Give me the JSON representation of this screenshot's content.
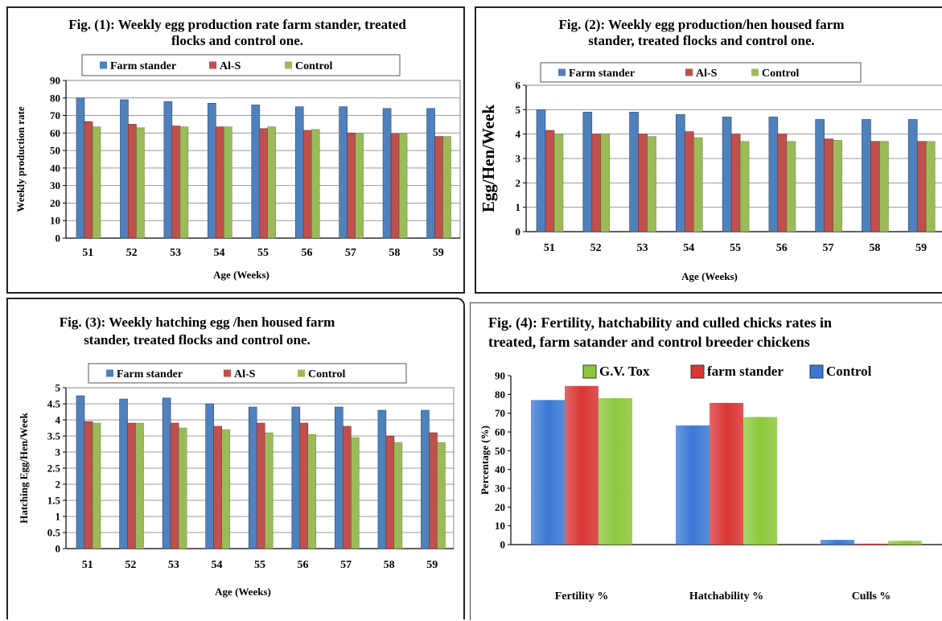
{
  "colors": {
    "blue": "#4f81bd",
    "red": "#c0504d",
    "green": "#9bbb59",
    "blue_bright": "#3a78d4",
    "red_bright": "#d93535",
    "green_bright": "#8cc83a",
    "grid": "#999999",
    "axis": "#000000"
  },
  "chart_data": [
    {
      "id": "fig1",
      "type": "bar",
      "title": [
        "Fig. (1): Weekly  egg production rate farm stander, treated",
        "flocks and control one."
      ],
      "xlabel": "Age (Weeks)",
      "ylabel": "Weekly production rate",
      "categories": [
        "51",
        "52",
        "53",
        "54",
        "55",
        "56",
        "57",
        "58",
        "59"
      ],
      "ylim": [
        0,
        90
      ],
      "yticks": [
        "0",
        "10",
        "20",
        "30",
        "40",
        "50",
        "60",
        "70",
        "80",
        "90"
      ],
      "grid": true,
      "legend": "top",
      "series": [
        {
          "name": "Farm stander",
          "values": [
            80,
            79,
            78,
            77,
            76,
            75,
            75,
            74,
            74
          ]
        },
        {
          "name": "Al-S",
          "values": [
            66.5,
            65,
            64,
            63.5,
            62.5,
            61.5,
            60,
            59.5,
            58
          ]
        },
        {
          "name": "Control",
          "values": [
            63.5,
            63,
            63.5,
            63.5,
            63.5,
            62,
            59.5,
            59.5,
            58
          ]
        }
      ]
    },
    {
      "id": "fig2",
      "type": "bar",
      "title": [
        "Fig. (2): Weekly  egg production/hen housed farm",
        "stander, treated flocks and control one."
      ],
      "xlabel": "Age (Weeks)",
      "ylabel": "Egg/Hen/Week",
      "categories": [
        "51",
        "52",
        "53",
        "54",
        "55",
        "56",
        "57",
        "58",
        "59"
      ],
      "ylim": [
        0,
        6
      ],
      "yticks": [
        "0",
        "1",
        "2",
        "3",
        "4",
        "5",
        "6"
      ],
      "grid": true,
      "legend": "top",
      "series": [
        {
          "name": "Farm stander",
          "values": [
            5,
            4.9,
            4.9,
            4.8,
            4.7,
            4.7,
            4.6,
            4.6,
            4.6
          ]
        },
        {
          "name": "Al-S",
          "values": [
            4.15,
            4.0,
            4.0,
            4.1,
            4.0,
            4.0,
            3.8,
            3.7,
            3.7
          ]
        },
        {
          "name": "Control",
          "values": [
            4.0,
            4.0,
            3.9,
            3.85,
            3.7,
            3.7,
            3.75,
            3.7,
            3.7
          ]
        }
      ]
    },
    {
      "id": "fig3",
      "type": "bar",
      "title": [
        "Fig. (3): Weekly hatching egg /hen housed farm",
        "stander, treated flocks and control one."
      ],
      "xlabel": "Age (Weeks)",
      "ylabel": "Hatching Egg/Hen/Week",
      "categories": [
        "51",
        "52",
        "53",
        "54",
        "55",
        "56",
        "57",
        "58",
        "59"
      ],
      "ylim": [
        0,
        5
      ],
      "yticks": [
        "0",
        "0.5",
        "1",
        "1.5",
        "2",
        "2.5",
        "3",
        "3.5",
        "4",
        "4.5",
        "5"
      ],
      "grid": true,
      "legend": "top",
      "series": [
        {
          "name": "Farm stander",
          "values": [
            4.75,
            4.65,
            4.68,
            4.5,
            4.4,
            4.4,
            4.4,
            4.3,
            4.3
          ]
        },
        {
          "name": "Al-S",
          "values": [
            3.95,
            3.9,
            3.9,
            3.8,
            3.9,
            3.9,
            3.8,
            3.5,
            3.6
          ]
        },
        {
          "name": "Control",
          "values": [
            3.9,
            3.9,
            3.75,
            3.7,
            3.6,
            3.55,
            3.45,
            3.3,
            3.3
          ]
        }
      ]
    },
    {
      "id": "fig4",
      "type": "bar",
      "title": [
        "Fig. (4): Fertility, hatchability and culled chicks rates in",
        "treated, farm satander and control breeder chickens"
      ],
      "xlabel": "",
      "ylabel": "Percentage (%)",
      "categories": [
        "Fertility %",
        "Hatchability %",
        "Culls %"
      ],
      "ylim": [
        0,
        90
      ],
      "yticks": [
        "0",
        "10",
        "20",
        "30",
        "40",
        "50",
        "60",
        "70",
        "80",
        "90"
      ],
      "grid": false,
      "legend": "top",
      "legend_entries": [
        {
          "name": "G.V. Tox",
          "color": "#8cc83a"
        },
        {
          "name": "farm stander",
          "color": "#d93535"
        },
        {
          "name": "Control",
          "color": "#3a78d4"
        }
      ],
      "series": [
        {
          "values": [
            77,
            63.5,
            2.5
          ]
        },
        {
          "values": [
            84.5,
            75.5,
            0.5
          ]
        },
        {
          "values": [
            78,
            68,
            2
          ]
        }
      ]
    }
  ]
}
